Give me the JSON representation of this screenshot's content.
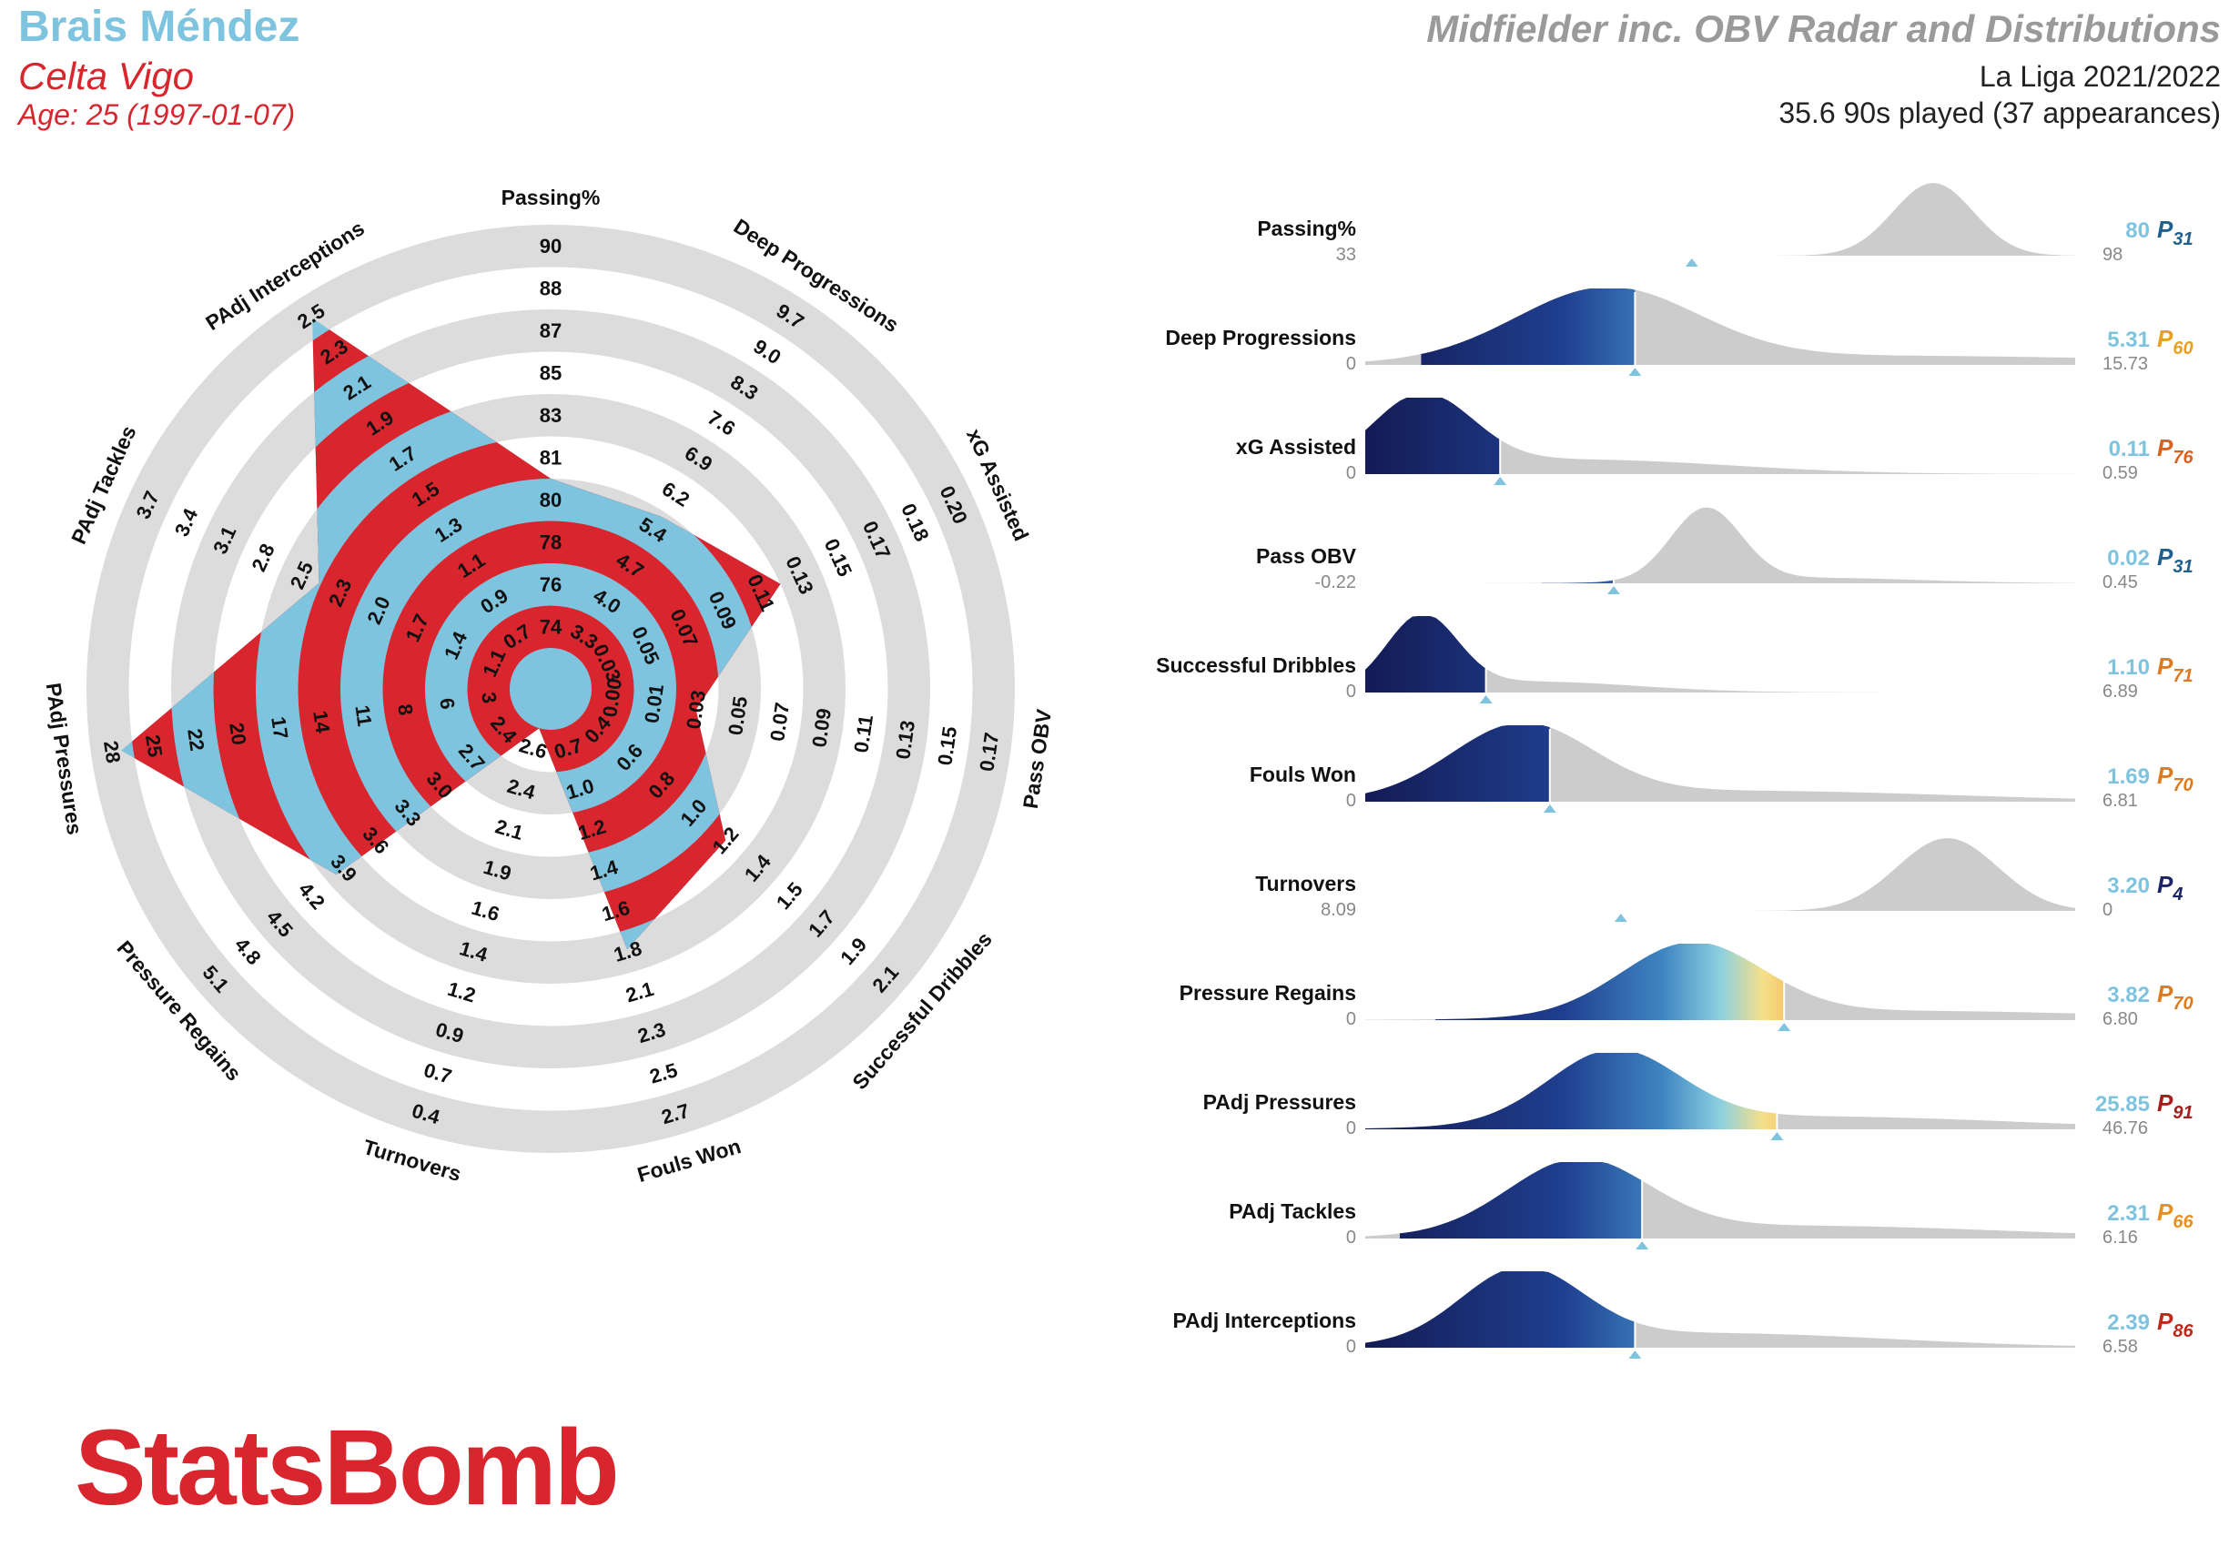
{
  "header": {
    "player_name": "Brais Méndez",
    "team": "Celta Vigo",
    "age_line": "Age: 25 (1997-01-07)",
    "title": "Midfielder inc. OBV Radar and Distributions",
    "league": "La Liga 2021/2022",
    "played": "35.6 90s played (37 appearances)"
  },
  "logo_text": "StatsBomb",
  "colors": {
    "blue": "#7fc4df",
    "red": "#d9262e",
    "ring": "#dcdcdc",
    "title_grey": "#9a9a9a"
  },
  "chart_data": [
    {
      "type": "radar",
      "axes": [
        {
          "label": "Passing%",
          "value": 80,
          "ticks": [
            "74",
            "76",
            "78",
            "80",
            "81",
            "83",
            "85",
            "87",
            "88",
            "90"
          ]
        },
        {
          "label": "Deep Progressions",
          "value": 5.31,
          "ticks": [
            "3.3",
            "4.0",
            "4.7",
            "5.4",
            "6.2",
            "6.9",
            "7.6",
            "8.3",
            "9.0",
            "9.7"
          ]
        },
        {
          "label": "xG Assisted",
          "value": 0.11,
          "ticks": [
            "0.03",
            "0.05",
            "0.07",
            "0.09",
            "0.11",
            "0.13",
            "0.15",
            "0.17",
            "0.18",
            "0.20"
          ]
        },
        {
          "label": "Pass OBV",
          "value": 0.02,
          "ticks": [
            "0.00",
            "0.01",
            "0.03",
            "0.05",
            "0.07",
            "0.09",
            "0.11",
            "0.13",
            "0.15",
            "0.17"
          ]
        },
        {
          "label": "Successful Dribbles",
          "value": 1.1,
          "ticks": [
            "0.4",
            "0.6",
            "0.8",
            "1.0",
            "1.2",
            "1.4",
            "1.5",
            "1.7",
            "1.9",
            "2.1"
          ]
        },
        {
          "label": "Fouls Won",
          "value": 1.69,
          "ticks": [
            "0.7",
            "1.0",
            "1.2",
            "1.4",
            "1.6",
            "1.8",
            "2.1",
            "2.3",
            "2.5",
            "2.7"
          ]
        },
        {
          "label": "Turnovers",
          "value": 3.2,
          "ticks": [
            "2.6",
            "2.4",
            "2.1",
            "1.9",
            "1.6",
            "1.4",
            "1.2",
            "0.9",
            "0.7",
            "0.4"
          ]
        },
        {
          "label": "Pressure Regains",
          "value": 3.82,
          "ticks": [
            "2.4",
            "2.7",
            "3.0",
            "3.3",
            "3.6",
            "3.9",
            "4.2",
            "4.5",
            "4.8",
            "5.1"
          ]
        },
        {
          "label": "PAdj Pressures",
          "value": 25.85,
          "ticks": [
            "3",
            "6",
            "8",
            "11",
            "14",
            "17",
            "20",
            "22",
            "25",
            "28"
          ]
        },
        {
          "label": "PAdj Tackles",
          "value": 2.31,
          "ticks": [
            "1.1",
            "1.4",
            "1.7",
            "2.0",
            "2.3",
            "2.5",
            "2.8",
            "3.1",
            "3.4",
            "3.7"
          ]
        },
        {
          "label": "PAdj Interceptions",
          "value": 2.39,
          "ticks": [
            "0.7",
            "0.9",
            "1.1",
            "1.3",
            "1.5",
            "1.7",
            "1.9",
            "2.1",
            "2.3",
            "2.5"
          ]
        }
      ]
    },
    {
      "type": "area",
      "metrics": [
        {
          "label": "Passing%",
          "min": "33",
          "max": "98",
          "value": "80",
          "pct": "31",
          "pct_color": "#1f5f8b"
        },
        {
          "label": "Deep Progressions",
          "min": "0",
          "max": "15.73",
          "value": "5.31",
          "pct": "60",
          "pct_color": "#e8a020"
        },
        {
          "label": "xG Assisted",
          "min": "0",
          "max": "0.59",
          "value": "0.11",
          "pct": "76",
          "pct_color": "#d9621e"
        },
        {
          "label": "Pass OBV",
          "min": "-0.22",
          "max": "0.45",
          "value": "0.02",
          "pct": "31",
          "pct_color": "#1f5f8b"
        },
        {
          "label": "Successful Dribbles",
          "min": "0",
          "max": "6.89",
          "value": "1.10",
          "pct": "71",
          "pct_color": "#e07a1e"
        },
        {
          "label": "Fouls Won",
          "min": "0",
          "max": "6.81",
          "value": "1.69",
          "pct": "70",
          "pct_color": "#e07a1e"
        },
        {
          "label": "Turnovers",
          "min": "8.09",
          "max": "0",
          "value": "3.20",
          "pct": "4",
          "pct_color": "#1a2466"
        },
        {
          "label": "Pressure Regains",
          "min": "0",
          "max": "6.80",
          "value": "3.82",
          "pct": "70",
          "pct_color": "#e07a1e"
        },
        {
          "label": "PAdj Pressures",
          "min": "0",
          "max": "46.76",
          "value": "25.85",
          "pct": "91",
          "pct_color": "#a81c1c"
        },
        {
          "label": "PAdj Tackles",
          "min": "0",
          "max": "6.16",
          "value": "2.31",
          "pct": "66",
          "pct_color": "#e8901e"
        },
        {
          "label": "PAdj Interceptions",
          "min": "0",
          "max": "6.58",
          "value": "2.39",
          "pct": "86",
          "pct_color": "#c0281c"
        }
      ]
    }
  ]
}
